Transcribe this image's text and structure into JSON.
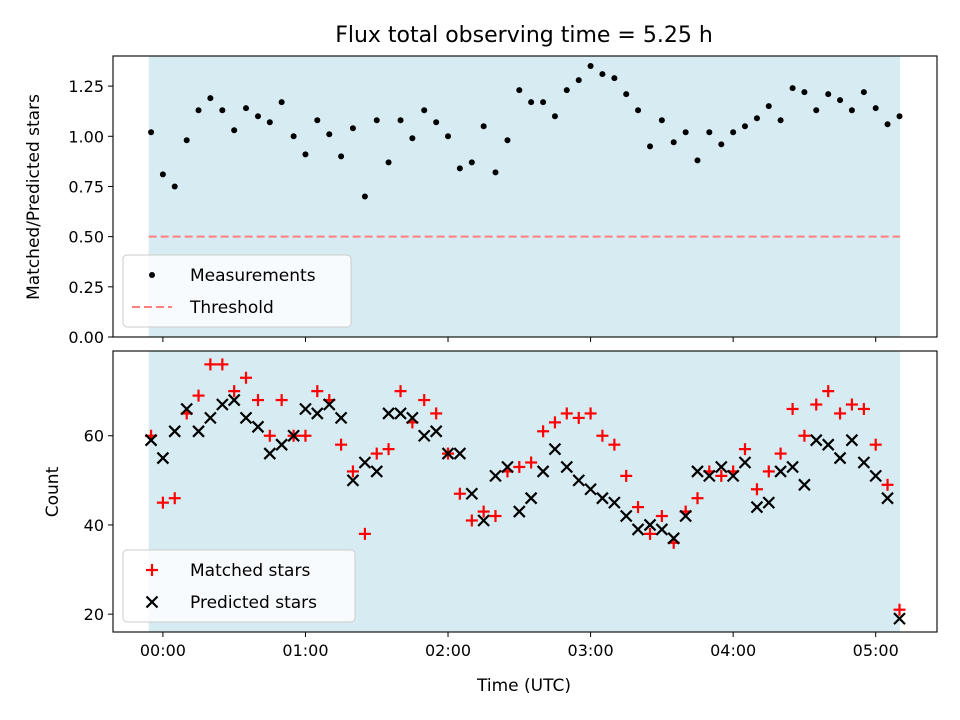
{
  "chart_data": {
    "type": "scatter",
    "title": "Flux total observing time = 5.25 h",
    "xlabel": "Time (UTC)",
    "x_unit": "hours",
    "x_ticks": [
      0,
      1,
      2,
      3,
      4,
      5
    ],
    "x_tick_labels": [
      "00:00",
      "01:00",
      "02:00",
      "03:00",
      "04:00",
      "05:00"
    ],
    "xlim": [
      -0.35,
      5.43
    ],
    "x": [
      -0.083,
      0.0,
      0.083,
      0.167,
      0.25,
      0.333,
      0.417,
      0.5,
      0.583,
      0.667,
      0.75,
      0.833,
      0.917,
      1.0,
      1.083,
      1.167,
      1.25,
      1.333,
      1.417,
      1.5,
      1.583,
      1.667,
      1.75,
      1.833,
      1.917,
      2.0,
      2.083,
      2.167,
      2.25,
      2.333,
      2.417,
      2.5,
      2.583,
      2.667,
      2.75,
      2.833,
      2.917,
      3.0,
      3.083,
      3.167,
      3.25,
      3.333,
      3.417,
      3.5,
      3.583,
      3.667,
      3.75,
      3.833,
      3.917,
      4.0,
      4.083,
      4.167,
      4.25,
      4.333,
      4.417,
      4.5,
      4.583,
      4.667,
      4.75,
      4.833,
      4.917,
      5.0,
      5.083,
      5.167
    ],
    "observing_window": [
      -0.1,
      5.17
    ],
    "panels": [
      {
        "ylabel": "Matched/Predicted stars",
        "ylim": [
          0.0,
          1.4
        ],
        "y_ticks": [
          0.0,
          0.25,
          0.5,
          0.75,
          1.0,
          1.25
        ],
        "y_tick_labels": [
          "0.00",
          "0.25",
          "0.50",
          "0.75",
          "1.00",
          "1.25"
        ],
        "legend": "lower left",
        "threshold": {
          "name": "Threshold",
          "value": 0.5,
          "color": "#ff7f7f"
        },
        "series": [
          {
            "name": "Measurements",
            "marker": "dot",
            "color": "#000000",
            "values": [
              1.02,
              0.81,
              0.75,
              0.98,
              1.13,
              1.19,
              1.13,
              1.03,
              1.14,
              1.1,
              1.07,
              1.17,
              1.0,
              0.91,
              1.08,
              1.01,
              0.9,
              1.04,
              0.7,
              1.08,
              0.87,
              1.08,
              0.99,
              1.13,
              1.07,
              1.0,
              0.84,
              0.87,
              1.05,
              0.82,
              0.98,
              1.23,
              1.17,
              1.17,
              1.1,
              1.23,
              1.28,
              1.35,
              1.31,
              1.29,
              1.21,
              1.13,
              0.95,
              1.08,
              0.97,
              1.02,
              0.88,
              1.02,
              0.96,
              1.02,
              1.05,
              1.09,
              1.15,
              1.08,
              1.24,
              1.22,
              1.13,
              1.21,
              1.18,
              1.13,
              1.22,
              1.14,
              1.06,
              1.1
            ]
          }
        ]
      },
      {
        "ylabel": "Count",
        "ylim": [
          16,
          79
        ],
        "y_ticks": [
          20,
          40,
          60
        ],
        "y_tick_labels": [
          "20",
          "40",
          "60"
        ],
        "legend": "lower left",
        "series": [
          {
            "name": "Matched stars",
            "marker": "plus",
            "color": "#ff0000",
            "values": [
              60,
              45,
              46,
              65,
              69,
              76,
              76,
              70,
              73,
              68,
              60,
              68,
              60,
              60,
              70,
              68,
              58,
              52,
              38,
              56,
              57,
              70,
              63,
              68,
              65,
              56,
              47,
              41,
              43,
              42,
              52,
              53,
              54,
              61,
              63,
              65,
              64,
              65,
              60,
              58,
              51,
              44,
              38,
              42,
              36,
              43,
              46,
              52,
              51,
              52,
              57,
              48,
              52,
              56,
              66,
              60,
              67,
              70,
              65,
              67,
              66,
              58,
              49,
              21
            ]
          },
          {
            "name": "Predicted stars",
            "marker": "x",
            "color": "#000000",
            "values": [
              59,
              55,
              61,
              66,
              61,
              64,
              67,
              68,
              64,
              62,
              56,
              58,
              60,
              66,
              65,
              67,
              64,
              50,
              54,
              52,
              65,
              65,
              64,
              60,
              61,
              56,
              56,
              47,
              41,
              51,
              53,
              43,
              46,
              52,
              57,
              53,
              50,
              48,
              46,
              45,
              42,
              39,
              40,
              39,
              37,
              42,
              52,
              51,
              53,
              51,
              54,
              44,
              45,
              52,
              53,
              49,
              59,
              58,
              55,
              59,
              54,
              51,
              46,
              19
            ]
          }
        ]
      }
    ]
  }
}
